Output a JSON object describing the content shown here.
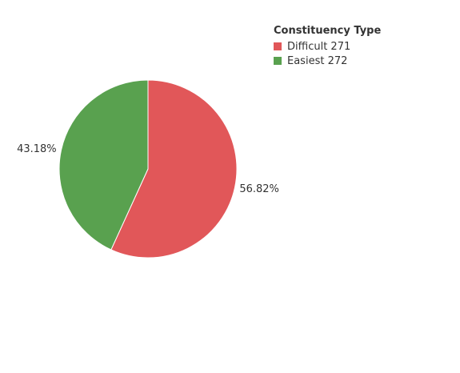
{
  "chart_data": {
    "type": "pie",
    "legend_title": "Constituency Type",
    "legend_position": "top-right",
    "slices": [
      {
        "label": "Difficult 271",
        "value": 56.82,
        "value_label": "56.82%",
        "color": "#e15759"
      },
      {
        "label": "Easiest 272",
        "value": 43.18,
        "value_label": "43.18%",
        "color": "#59a14f"
      }
    ]
  }
}
